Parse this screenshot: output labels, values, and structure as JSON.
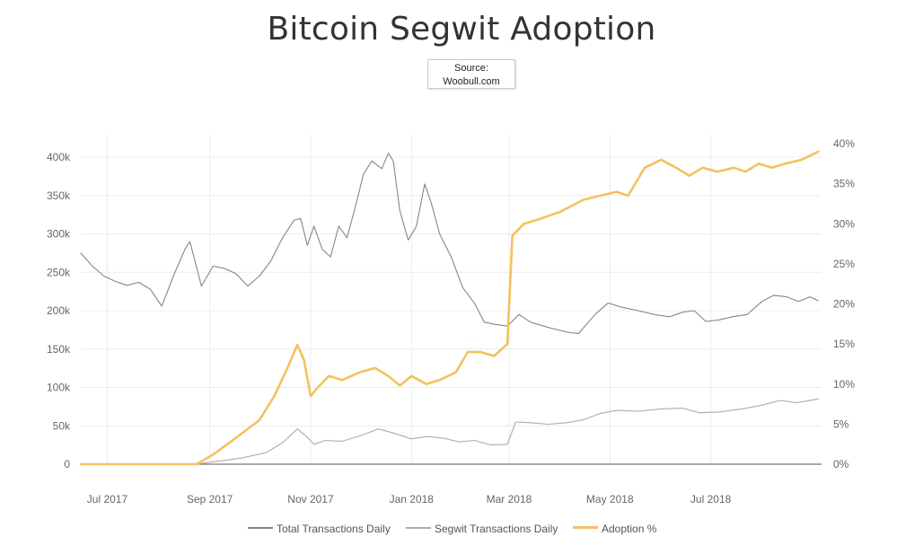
{
  "title": "Bitcoin Segwit Adoption",
  "source": {
    "line1": "Source:",
    "line2": "Woobull.com"
  },
  "legend": [
    {
      "label": "Total Transactions Daily",
      "color": "#8a8585"
    },
    {
      "label": "Segwit Transactions Daily",
      "color": "#b8a6aa"
    },
    {
      "label": "Adoption %",
      "color": "#f4c160"
    }
  ],
  "chart_data": {
    "type": "line",
    "title": "Bitcoin Segwit Adoption",
    "xlabel": "",
    "ylabel": "",
    "x_ticks": [
      "Jul 2017",
      "Sep 2017",
      "Nov 2017",
      "Jan 2018",
      "Mar 2018",
      "May 2018",
      "Jul 2018"
    ],
    "y_left_ticks": [
      "0",
      "50k",
      "100k",
      "150k",
      "200k",
      "250k",
      "300k",
      "350k",
      "400k"
    ],
    "y_right_ticks": [
      "0%",
      "5%",
      "10%",
      "15%",
      "20%",
      "25%",
      "30%",
      "35%",
      "40%"
    ],
    "y_left_range": [
      0,
      420000
    ],
    "y_right_range": [
      0,
      40
    ],
    "x_range": [
      "2017-06-15",
      "2018-09-06"
    ],
    "grid": true,
    "legend_position": "bottom",
    "series": [
      {
        "name": "Total Transactions Daily",
        "axis": "left",
        "color": "#8a8585",
        "points": [
          [
            "2017-06-15",
            275000
          ],
          [
            "2017-06-22",
            258000
          ],
          [
            "2017-06-29",
            245000
          ],
          [
            "2017-07-06",
            238000
          ],
          [
            "2017-07-13",
            233000
          ],
          [
            "2017-07-20",
            237000
          ],
          [
            "2017-07-27",
            228000
          ],
          [
            "2017-08-03",
            206000
          ],
          [
            "2017-08-10",
            245000
          ],
          [
            "2017-08-17",
            280000
          ],
          [
            "2017-08-20",
            290000
          ],
          [
            "2017-08-27",
            232000
          ],
          [
            "2017-09-03",
            258000
          ],
          [
            "2017-09-10",
            255000
          ],
          [
            "2017-09-17",
            248000
          ],
          [
            "2017-09-24",
            232000
          ],
          [
            "2017-10-01",
            245000
          ],
          [
            "2017-10-08",
            265000
          ],
          [
            "2017-10-15",
            295000
          ],
          [
            "2017-10-22",
            318000
          ],
          [
            "2017-10-26",
            320000
          ],
          [
            "2017-10-30",
            285000
          ],
          [
            "2017-11-03",
            310000
          ],
          [
            "2017-11-08",
            280000
          ],
          [
            "2017-11-13",
            270000
          ],
          [
            "2017-11-18",
            310000
          ],
          [
            "2017-11-23",
            295000
          ],
          [
            "2017-11-28",
            335000
          ],
          [
            "2017-12-03",
            378000
          ],
          [
            "2017-12-08",
            395000
          ],
          [
            "2017-12-14",
            385000
          ],
          [
            "2017-12-18",
            405000
          ],
          [
            "2017-12-21",
            395000
          ],
          [
            "2017-12-25",
            330000
          ],
          [
            "2017-12-30",
            292000
          ],
          [
            "2018-01-04",
            310000
          ],
          [
            "2018-01-09",
            365000
          ],
          [
            "2018-01-13",
            340000
          ],
          [
            "2018-01-18",
            300000
          ],
          [
            "2018-01-25",
            270000
          ],
          [
            "2018-02-01",
            230000
          ],
          [
            "2018-02-08",
            210000
          ],
          [
            "2018-02-14",
            185000
          ],
          [
            "2018-02-21",
            182000
          ],
          [
            "2018-02-28",
            180000
          ],
          [
            "2018-03-07",
            195000
          ],
          [
            "2018-03-14",
            185000
          ],
          [
            "2018-03-25",
            178000
          ],
          [
            "2018-04-05",
            172000
          ],
          [
            "2018-04-12",
            170000
          ],
          [
            "2018-04-22",
            195000
          ],
          [
            "2018-04-30",
            210000
          ],
          [
            "2018-05-07",
            205000
          ],
          [
            "2018-05-18",
            200000
          ],
          [
            "2018-05-28",
            195000
          ],
          [
            "2018-06-06",
            192000
          ],
          [
            "2018-06-14",
            198000
          ],
          [
            "2018-06-21",
            200000
          ],
          [
            "2018-06-28",
            186000
          ],
          [
            "2018-07-06",
            188000
          ],
          [
            "2018-07-14",
            192000
          ],
          [
            "2018-07-23",
            195000
          ],
          [
            "2018-08-01",
            212000
          ],
          [
            "2018-08-08",
            220000
          ],
          [
            "2018-08-16",
            218000
          ],
          [
            "2018-08-23",
            212000
          ],
          [
            "2018-08-30",
            218000
          ],
          [
            "2018-09-04",
            213000
          ]
        ]
      },
      {
        "name": "Segwit Transactions Daily",
        "axis": "left",
        "color": "#b8a6aa",
        "points": [
          [
            "2017-06-15",
            0
          ],
          [
            "2017-08-24",
            0
          ],
          [
            "2017-09-03",
            3000
          ],
          [
            "2017-09-20",
            8000
          ],
          [
            "2017-10-05",
            15000
          ],
          [
            "2017-10-15",
            28000
          ],
          [
            "2017-10-24",
            46000
          ],
          [
            "2017-10-30",
            35000
          ],
          [
            "2017-11-03",
            26000
          ],
          [
            "2017-11-10",
            31000
          ],
          [
            "2017-11-20",
            30000
          ],
          [
            "2017-12-01",
            37000
          ],
          [
            "2017-12-12",
            46000
          ],
          [
            "2017-12-22",
            40000
          ],
          [
            "2018-01-01",
            33000
          ],
          [
            "2018-01-10",
            36000
          ],
          [
            "2018-01-20",
            34000
          ],
          [
            "2018-01-30",
            29000
          ],
          [
            "2018-02-08",
            31000
          ],
          [
            "2018-02-18",
            25000
          ],
          [
            "2018-02-28",
            26000
          ],
          [
            "2018-03-05",
            55000
          ],
          [
            "2018-03-14",
            54000
          ],
          [
            "2018-03-25",
            52000
          ],
          [
            "2018-04-05",
            54000
          ],
          [
            "2018-04-15",
            58000
          ],
          [
            "2018-04-25",
            66000
          ],
          [
            "2018-05-05",
            70000
          ],
          [
            "2018-05-18",
            69000
          ],
          [
            "2018-06-01",
            72000
          ],
          [
            "2018-06-14",
            73000
          ],
          [
            "2018-06-24",
            67000
          ],
          [
            "2018-07-06",
            68000
          ],
          [
            "2018-07-20",
            72000
          ],
          [
            "2018-08-01",
            77000
          ],
          [
            "2018-08-12",
            83000
          ],
          [
            "2018-08-22",
            80000
          ],
          [
            "2018-09-04",
            85000
          ]
        ]
      },
      {
        "name": "Adoption %",
        "axis": "right",
        "color": "#f4c160",
        "points": [
          [
            "2017-06-15",
            0
          ],
          [
            "2017-08-24",
            0
          ],
          [
            "2017-09-03",
            1.2
          ],
          [
            "2017-09-15",
            3
          ],
          [
            "2017-10-01",
            5.5
          ],
          [
            "2017-10-10",
            8.5
          ],
          [
            "2017-10-18",
            12
          ],
          [
            "2017-10-24",
            14.9
          ],
          [
            "2017-10-28",
            13
          ],
          [
            "2017-11-01",
            8.5
          ],
          [
            "2017-11-05",
            9.5
          ],
          [
            "2017-11-12",
            11
          ],
          [
            "2017-11-20",
            10.5
          ],
          [
            "2017-12-01",
            11.5
          ],
          [
            "2017-12-10",
            12
          ],
          [
            "2017-12-18",
            11
          ],
          [
            "2017-12-25",
            9.8
          ],
          [
            "2018-01-01",
            11
          ],
          [
            "2018-01-10",
            10
          ],
          [
            "2018-01-18",
            10.5
          ],
          [
            "2018-01-28",
            11.5
          ],
          [
            "2018-02-04",
            14
          ],
          [
            "2018-02-12",
            14
          ],
          [
            "2018-02-20",
            13.5
          ],
          [
            "2018-02-28",
            15
          ],
          [
            "2018-03-03",
            28.5
          ],
          [
            "2018-03-10",
            30
          ],
          [
            "2018-03-18",
            30.5
          ],
          [
            "2018-04-01",
            31.5
          ],
          [
            "2018-04-15",
            33
          ],
          [
            "2018-04-25",
            33.5
          ],
          [
            "2018-05-05",
            34
          ],
          [
            "2018-05-12",
            33.5
          ],
          [
            "2018-05-22",
            37
          ],
          [
            "2018-06-01",
            38
          ],
          [
            "2018-06-10",
            37
          ],
          [
            "2018-06-18",
            36
          ],
          [
            "2018-06-26",
            37
          ],
          [
            "2018-07-05",
            36.5
          ],
          [
            "2018-07-15",
            37
          ],
          [
            "2018-07-22",
            36.5
          ],
          [
            "2018-07-30",
            37.5
          ],
          [
            "2018-08-07",
            37
          ],
          [
            "2018-08-15",
            37.5
          ],
          [
            "2018-08-25",
            38
          ],
          [
            "2018-09-04",
            39
          ]
        ]
      }
    ]
  }
}
